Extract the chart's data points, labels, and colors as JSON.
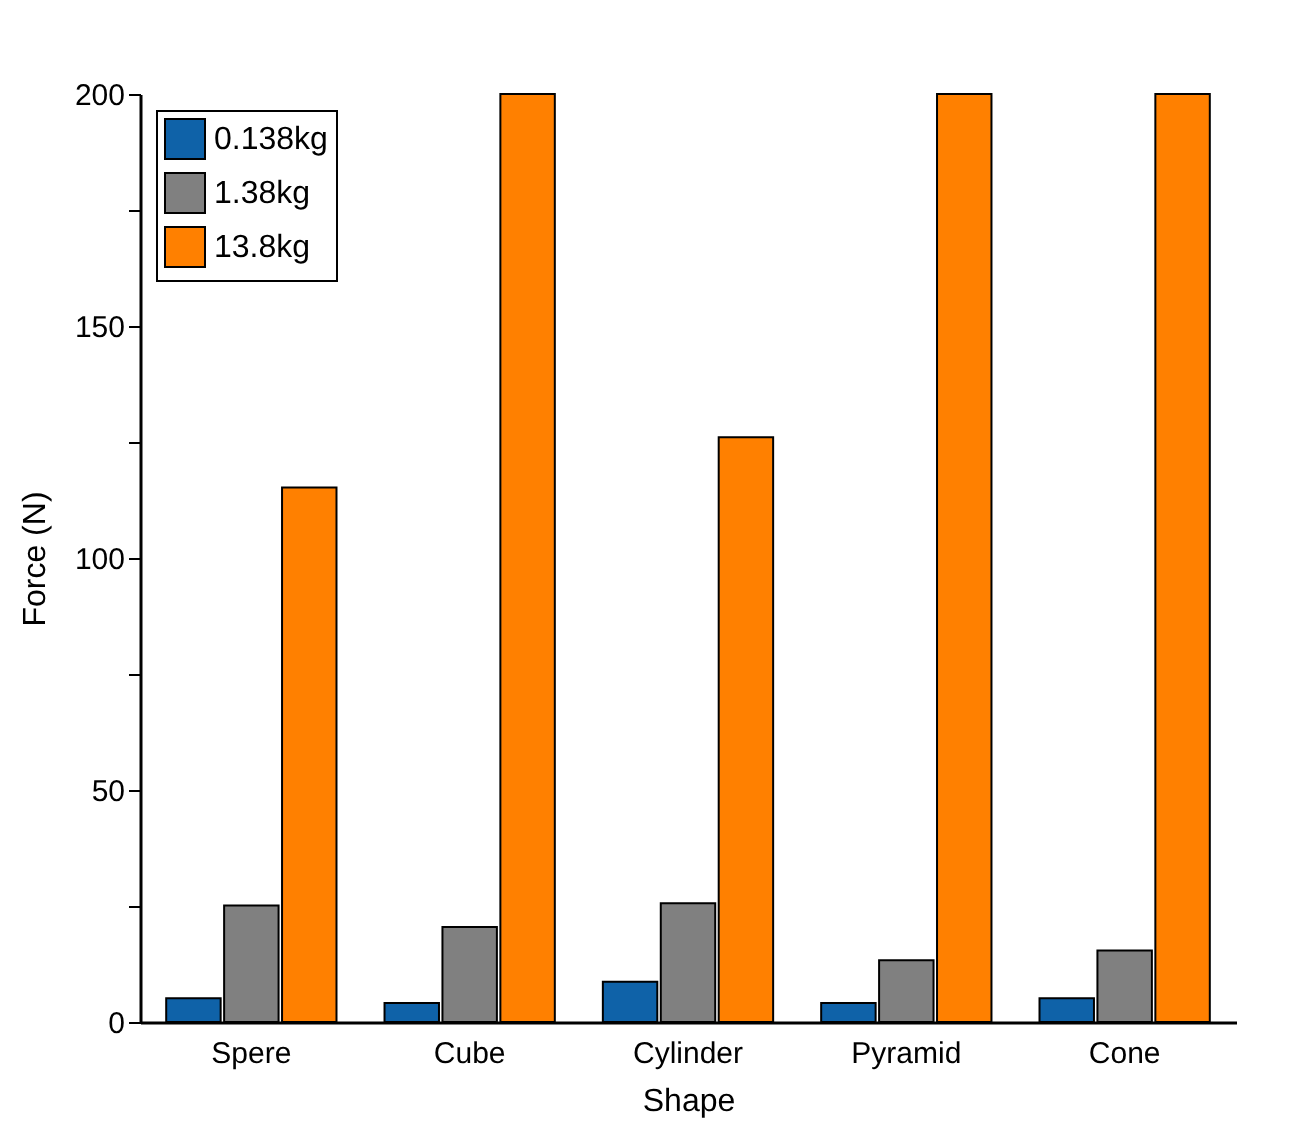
{
  "chart_data": {
    "type": "bar",
    "xlabel": "Shape",
    "ylabel": "Force (N)",
    "categories": [
      "Spere",
      "Cube",
      "Cylinder",
      "Pyramid",
      "Cone"
    ],
    "series": [
      {
        "name": "0.138kg",
        "color": "#0f62a8",
        "values": [
          5.1,
          4.1,
          8.7,
          4.1,
          5.1
        ]
      },
      {
        "name": "1.38kg",
        "color": "#808080",
        "values": [
          25.1,
          20.5,
          25.6,
          13.3,
          15.4
        ]
      },
      {
        "name": "13.8kg",
        "color": "#ff8000",
        "values": [
          115.2,
          200,
          126,
          200,
          200
        ]
      }
    ],
    "ylim": [
      0,
      200
    ],
    "yticks": [
      0,
      {
        "value": 25,
        "label": null
      },
      50,
      {
        "value": 75,
        "label": null
      },
      100,
      {
        "value": 125,
        "label": null
      },
      150,
      {
        "value": 175,
        "label": null
      },
      200
    ],
    "grid": false,
    "legend": "top left"
  }
}
